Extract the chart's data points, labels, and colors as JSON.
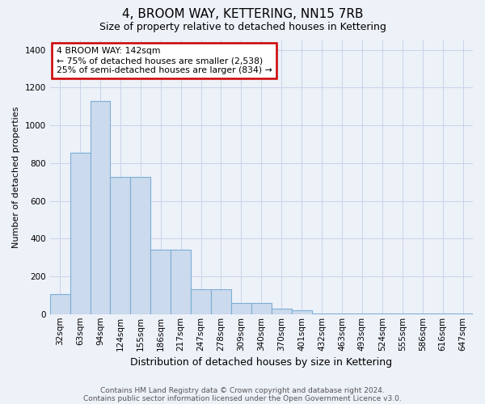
{
  "title": "4, BROOM WAY, KETTERING, NN15 7RB",
  "subtitle": "Size of property relative to detached houses in Kettering",
  "xlabel": "Distribution of detached houses by size in Kettering",
  "ylabel": "Number of detached properties",
  "footnote1": "Contains HM Land Registry data © Crown copyright and database right 2024.",
  "footnote2": "Contains public sector information licensed under the Open Government Licence v3.0.",
  "categories": [
    "32sqm",
    "63sqm",
    "94sqm",
    "124sqm",
    "155sqm",
    "186sqm",
    "217sqm",
    "247sqm",
    "278sqm",
    "309sqm",
    "340sqm",
    "370sqm",
    "401sqm",
    "432sqm",
    "463sqm",
    "493sqm",
    "524sqm",
    "555sqm",
    "586sqm",
    "616sqm",
    "647sqm"
  ],
  "values": [
    105,
    855,
    1130,
    725,
    725,
    340,
    340,
    130,
    130,
    60,
    60,
    30,
    20,
    5,
    5,
    5,
    3,
    3,
    2,
    2,
    2
  ],
  "bar_color": "#ccdaed",
  "bar_edge_color": "#7aaed6",
  "grid_color": "#c8d4e8",
  "bg_color": "#edf1f8",
  "annotation_text": "4 BROOM WAY: 142sqm\n← 75% of detached houses are smaller (2,538)\n25% of semi-detached houses are larger (834) →",
  "annotation_box_color": "#ffffff",
  "annotation_border_color": "#cc0000",
  "ylim": [
    0,
    1450
  ],
  "yticks": [
    0,
    200,
    400,
    600,
    800,
    1000,
    1200,
    1400
  ],
  "title_fontsize": 11,
  "subtitle_fontsize": 9,
  "ylabel_fontsize": 8,
  "xlabel_fontsize": 9,
  "tick_fontsize": 7.5,
  "footnote_fontsize": 6.5
}
